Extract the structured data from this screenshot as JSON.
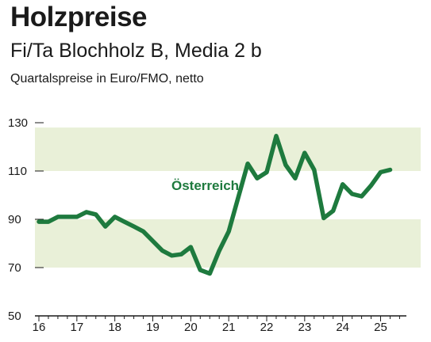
{
  "header": {
    "title": "Holzpreise",
    "subtitle": "Fi/Ta Blochholz B, Media 2 b",
    "unit_note": "Quartalspreise in Euro/FMO, netto"
  },
  "colors": {
    "line": "#1e7a3e",
    "band": "#e9f0d8",
    "text": "#1a1a1a"
  },
  "chart_data": {
    "type": "line",
    "title": "Holzpreise",
    "subtitle": "Fi/Ta Blochholz B, Media 2 b",
    "ylabel": "Quartalspreise in Euro/FMO, netto",
    "xlabel": "",
    "ylim": [
      50,
      130
    ],
    "xlim": [
      16,
      25.4
    ],
    "yticks": [
      50,
      70,
      90,
      110,
      130
    ],
    "xticks": [
      16,
      17,
      18,
      19,
      20,
      21,
      22,
      23,
      24,
      25
    ],
    "xtick_labels": [
      "16",
      "17",
      "18",
      "19",
      "20",
      "21",
      "22",
      "23",
      "24",
      "25"
    ],
    "ytick_labels": [
      "50",
      "70",
      "90",
      "110",
      "130"
    ],
    "shaded_bands": [
      [
        70,
        90
      ],
      [
        110,
        128
      ]
    ],
    "grid": false,
    "series": [
      {
        "name": "Österreich",
        "x": [
          16.0,
          16.25,
          16.5,
          16.75,
          17.0,
          17.25,
          17.5,
          17.75,
          18.0,
          18.25,
          18.5,
          18.75,
          19.0,
          19.25,
          19.5,
          19.75,
          20.0,
          20.25,
          20.5,
          20.75,
          21.0,
          21.25,
          21.5,
          21.75,
          22.0,
          22.25,
          22.5,
          22.75,
          23.0,
          23.25,
          23.5,
          23.75,
          24.0,
          24.25,
          24.5,
          24.75,
          25.0,
          25.25
        ],
        "values": [
          89,
          89,
          91,
          91,
          91,
          93,
          92,
          87,
          91,
          89,
          87,
          85,
          81,
          77,
          75,
          75.5,
          78.5,
          69,
          67.5,
          77,
          85,
          99,
          113,
          107,
          109.5,
          124.5,
          112.5,
          107,
          117.5,
          110.5,
          90.5,
          93.5,
          104.5,
          100.5,
          99.5,
          104,
          109.5,
          110.5
        ]
      }
    ]
  }
}
